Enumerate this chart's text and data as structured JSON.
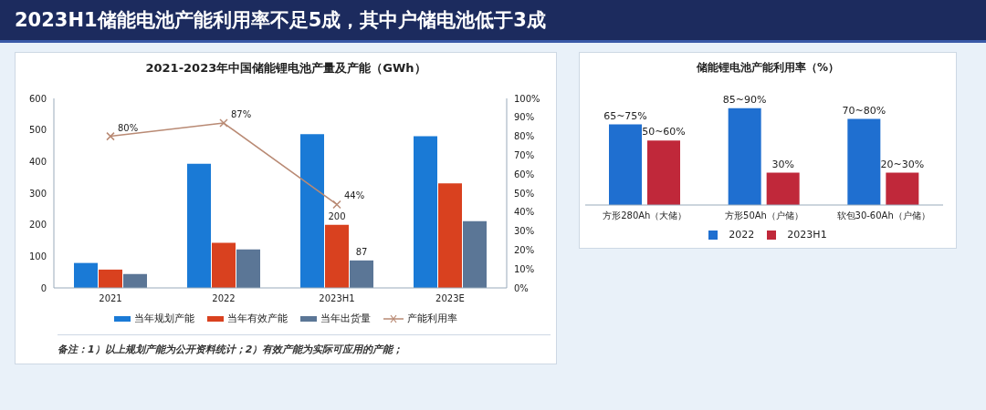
{
  "chart_data": [
    {
      "type": "other",
      "title": "2023H1储能电池产能利用率不足5成，其中户储电池低于3成"
    },
    {
      "type": "bar",
      "title": "2021-2023年中国储能锂电池产量及产能（GWh）",
      "categories": [
        "2021",
        "2022",
        "2023H1",
        "2023E"
      ],
      "series": [
        {
          "name": "当年规划产能",
          "color": "#1a7ad6",
          "values": [
            79,
            393,
            487,
            480
          ]
        },
        {
          "name": "当年有效产能",
          "color": "#d9411f",
          "values": [
            58,
            143,
            200,
            331
          ],
          "value_labels": [
            null,
            null,
            "200",
            null
          ]
        },
        {
          "name": "当年出货量",
          "color": "#5b7696",
          "values": [
            44,
            122,
            87,
            211
          ],
          "value_labels": [
            null,
            null,
            "87",
            null
          ]
        },
        {
          "name": "产能利用率",
          "type": "line",
          "axis": "y2",
          "color": "#b98a74",
          "marker": "cross",
          "values": [
            80,
            87,
            44,
            null
          ],
          "value_labels": [
            "80%",
            "87%",
            "44%",
            null
          ]
        }
      ],
      "ylim": [
        0,
        600
      ],
      "yticks": [
        0,
        100,
        200,
        300,
        400,
        500,
        600
      ],
      "y2lim": [
        0,
        100
      ],
      "y2ticks": [
        {
          "value": 0,
          "label": "0%"
        },
        {
          "value": 10,
          "label": "10%"
        },
        {
          "value": 20,
          "label": "20%"
        },
        {
          "value": 30,
          "label": "30%"
        },
        {
          "value": 40,
          "label": "40%"
        },
        {
          "value": 50,
          "label": "50%"
        },
        {
          "value": 60,
          "label": "60%"
        },
        {
          "value": 70,
          "label": "70%"
        },
        {
          "value": 80,
          "label": "80%"
        },
        {
          "value": 90,
          "label": "90%"
        },
        {
          "value": 100,
          "label": "100%"
        }
      ],
      "legend": "bottom",
      "annotations": [
        "备注：1）以上规划产能为公开资料统计；2）有效产能为实际可应用的产能；"
      ]
    },
    {
      "type": "bar",
      "title": "储能锂电池产能利用率（%）",
      "categories": [
        "方形280Ah（大储）",
        "方形50Ah（户储）",
        "软包30-60Ah（户储）"
      ],
      "series": [
        {
          "name": "2022",
          "color": "#1f6fd0",
          "values": [
            75,
            90,
            80
          ],
          "value_labels": [
            "65~75%",
            "85~90%",
            "70~80%"
          ]
        },
        {
          "name": "2023H1",
          "color": "#c0283a",
          "values": [
            60,
            30,
            30
          ],
          "value_labels": [
            "50~60%",
            "30%",
            "20~30%"
          ]
        }
      ],
      "legend": "bottom"
    }
  ]
}
